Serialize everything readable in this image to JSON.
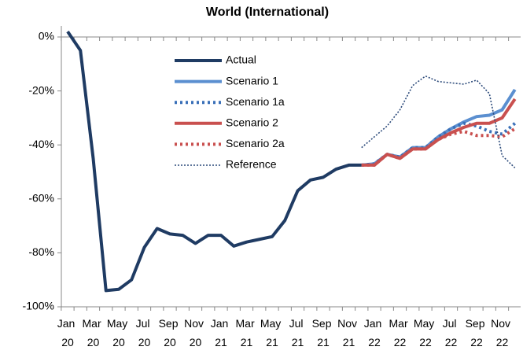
{
  "chart_data": {
    "type": "line",
    "title": "World (International)",
    "categories": [
      "Jan 20",
      null,
      "Mar 20",
      null,
      "May 20",
      null,
      "Jul 20",
      null,
      "Sep 20",
      null,
      "Nov 20",
      null,
      "Jan 21",
      null,
      "Mar 21",
      null,
      "May 21",
      null,
      "Jul 21",
      null,
      "Sep 21",
      null,
      "Nov 21",
      null,
      "Jan 22",
      null,
      "Mar 22",
      null,
      "May 22",
      null,
      "Jul 22",
      null,
      "Sep 22",
      null,
      "Nov 22",
      null
    ],
    "series": [
      {
        "name": "Actual",
        "color": "#1f3b63",
        "style": "solid",
        "width": 4,
        "values": [
          2,
          -5,
          -45,
          -94,
          -93.5,
          -90,
          -78,
          -71,
          -73,
          -73.5,
          -76.5,
          -73.5,
          -73.5,
          -77.5,
          -76,
          -75,
          -74,
          -68,
          -57,
          -53,
          -52,
          -49,
          -47.5,
          -47.5,
          null,
          null,
          null,
          null,
          null,
          null,
          null,
          null,
          null,
          null,
          null,
          null
        ]
      },
      {
        "name": "Scenario 1",
        "color": "#5b8fd0",
        "style": "solid",
        "width": 4,
        "values": [
          null,
          null,
          null,
          null,
          null,
          null,
          null,
          null,
          null,
          null,
          null,
          null,
          null,
          null,
          null,
          null,
          null,
          null,
          null,
          null,
          null,
          null,
          null,
          -47.5,
          -47,
          -43.5,
          -44.5,
          -41,
          -41,
          -37,
          -34,
          -31.5,
          -29.5,
          -29,
          -27,
          -19.5
        ]
      },
      {
        "name": "Scenario 1a",
        "color": "#3a70b8",
        "style": "dotted",
        "width": 4,
        "values": [
          null,
          null,
          null,
          null,
          null,
          null,
          null,
          null,
          null,
          null,
          null,
          null,
          null,
          null,
          null,
          null,
          null,
          null,
          null,
          null,
          null,
          null,
          null,
          -47.5,
          -47,
          -43.5,
          -44.5,
          -41,
          -41,
          -37,
          -34,
          -32,
          -33,
          -35,
          -36,
          -32
        ]
      },
      {
        "name": "Scenario 2",
        "color": "#c9504f",
        "style": "solid",
        "width": 4,
        "values": [
          null,
          null,
          null,
          null,
          null,
          null,
          null,
          null,
          null,
          null,
          null,
          null,
          null,
          null,
          null,
          null,
          null,
          null,
          null,
          null,
          null,
          null,
          null,
          -47.5,
          -47.5,
          -43.5,
          -45,
          -41.5,
          -41.5,
          -38,
          -35.5,
          -33.5,
          -32,
          -32,
          -30,
          -23
        ]
      },
      {
        "name": "Scenario 2a",
        "color": "#c9504f",
        "style": "dotted",
        "width": 4,
        "values": [
          null,
          null,
          null,
          null,
          null,
          null,
          null,
          null,
          null,
          null,
          null,
          null,
          null,
          null,
          null,
          null,
          null,
          null,
          null,
          null,
          null,
          null,
          null,
          -47.5,
          -47.5,
          -43.5,
          -45,
          -41.5,
          -41.5,
          -38,
          -36,
          -35,
          -36.5,
          -36.5,
          -37,
          -34
        ]
      },
      {
        "name": "Reference",
        "color": "#2c4a7a",
        "style": "dotted",
        "width": 1.6,
        "values": [
          null,
          null,
          null,
          null,
          null,
          null,
          null,
          null,
          null,
          null,
          null,
          null,
          null,
          null,
          null,
          null,
          null,
          null,
          null,
          null,
          null,
          null,
          null,
          -41,
          -37,
          -33,
          -27,
          -18,
          -14.5,
          -16.5,
          -17,
          -17.5,
          -16,
          -21,
          -44,
          -48.5
        ]
      }
    ],
    "ylim": [
      -100,
      0
    ],
    "yticks": [
      {
        "value": -100,
        "label": "-100%"
      },
      {
        "value": -80,
        "label": "-80%"
      },
      {
        "value": -60,
        "label": "-60%"
      },
      {
        "value": -40,
        "label": "-40%"
      },
      {
        "value": -20,
        "label": "-20%"
      },
      {
        "value": 0,
        "label": "0%"
      }
    ],
    "grid": false,
    "legend": "upper center"
  }
}
